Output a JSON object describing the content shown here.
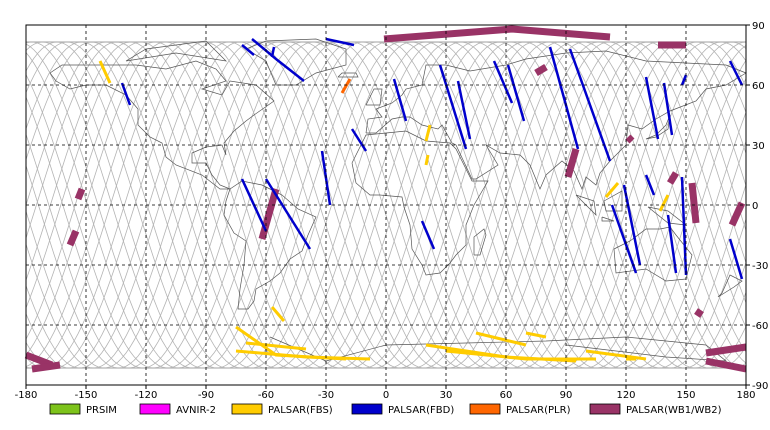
{
  "chart_data": {
    "type": "map",
    "projection": "equirectangular",
    "xlim": [
      -180,
      180
    ],
    "ylim": [
      -90,
      90
    ],
    "grid": "dashed, every 30 degrees",
    "x_ticks": [
      -180,
      -150,
      -120,
      -90,
      -60,
      -30,
      0,
      30,
      60,
      90,
      120,
      150,
      180
    ],
    "y_ticks": [
      -90,
      -60,
      -30,
      0,
      30,
      60,
      90
    ],
    "orbit_track_color": "#b4b4b4",
    "coast_color": "#555555",
    "legend": [
      {
        "label": "PRSIM",
        "color": "#7dc31b"
      },
      {
        "label": "AVNIR-2",
        "color": "#ff00ff"
      },
      {
        "label": "PALSAR(FBS)",
        "color": "#ffcc00"
      },
      {
        "label": "PALSAR(FBD)",
        "color": "#0000cc"
      },
      {
        "label": "PALSAR(PLR)",
        "color": "#ff6600"
      },
      {
        "label": "PALSAR(WB1/WB2)",
        "color": "#993366"
      }
    ],
    "series": [
      {
        "sensor": "PALSAR(WB1/WB2)",
        "lines": [
          [
            [
              -180,
              -75
            ],
            [
              -167,
              -80
            ]
          ],
          [
            [
              -177,
              -82
            ],
            [
              -163,
              -80
            ]
          ],
          [
            [
              -158,
              -20
            ],
            [
              -155,
              -13
            ]
          ],
          [
            [
              -154,
              3
            ],
            [
              -152,
              8
            ]
          ],
          [
            [
              -62,
              -17
            ],
            [
              -55,
              8
            ]
          ],
          [
            [
              -1,
              83
            ],
            [
              63,
              88
            ],
            [
              112,
              84
            ]
          ],
          [
            [
              75,
              66
            ],
            [
              80,
              69
            ]
          ],
          [
            [
              91,
              14
            ],
            [
              95,
              28
            ]
          ],
          [
            [
              121,
              34
            ],
            [
              123,
              32
            ]
          ],
          [
            [
              142,
              11
            ],
            [
              145,
              16
            ]
          ],
          [
            [
              153,
              11
            ],
            [
              155,
              -9
            ]
          ],
          [
            [
              173,
              -10
            ],
            [
              178,
              1
            ]
          ],
          [
            [
              136,
              80
            ],
            [
              150,
              80
            ]
          ],
          [
            [
              155,
              -53
            ],
            [
              158,
              -55
            ]
          ],
          [
            [
              160,
              -74
            ],
            [
              180,
              -71
            ]
          ],
          [
            [
              160,
              -78
            ],
            [
              180,
              -82
            ]
          ]
        ]
      },
      {
        "sensor": "PALSAR(FBD)",
        "lines": [
          [
            [
              -67,
              83
            ],
            [
              -55,
              73
            ],
            [
              -41,
              62
            ]
          ],
          [
            [
              -30,
              83
            ],
            [
              -16,
              80
            ]
          ],
          [
            [
              -72,
              80
            ],
            [
              -66,
              75
            ]
          ],
          [
            [
              -132,
              61
            ],
            [
              -128,
              50
            ]
          ],
          [
            [
              -56,
              79
            ],
            [
              -57,
              74
            ]
          ],
          [
            [
              -72,
              13
            ],
            [
              -60,
              -13
            ]
          ],
          [
            [
              -60,
              13
            ],
            [
              -38,
              -22
            ]
          ],
          [
            [
              -32,
              27
            ],
            [
              -28,
              0
            ]
          ],
          [
            [
              -17,
              38
            ],
            [
              -10,
              27
            ]
          ],
          [
            [
              4,
              63
            ],
            [
              10,
              42
            ]
          ],
          [
            [
              18,
              -8
            ],
            [
              24,
              -22
            ]
          ],
          [
            [
              27,
              70
            ],
            [
              40,
              28
            ]
          ],
          [
            [
              36,
              62
            ],
            [
              42,
              33
            ]
          ],
          [
            [
              54,
              72
            ],
            [
              63,
              51
            ]
          ],
          [
            [
              61,
              70
            ],
            [
              69,
              42
            ]
          ],
          [
            [
              92,
              78
            ],
            [
              112,
              22
            ]
          ],
          [
            [
              82,
              79
            ],
            [
              96,
              28
            ]
          ],
          [
            [
              119,
              10
            ],
            [
              127,
              -30
            ]
          ],
          [
            [
              113,
              0
            ],
            [
              125,
              -34
            ]
          ],
          [
            [
              130,
              64
            ],
            [
              136,
              33
            ]
          ],
          [
            [
              139,
              61
            ],
            [
              143,
              35
            ]
          ],
          [
            [
              148,
              14
            ],
            [
              150,
              -35
            ]
          ],
          [
            [
              172,
              72
            ],
            [
              178,
              60
            ]
          ],
          [
            [
              172,
              -17
            ],
            [
              178,
              -37
            ]
          ],
          [
            [
              141,
              -5
            ],
            [
              145,
              -34
            ]
          ],
          [
            [
              130,
              15
            ],
            [
              134,
              5
            ]
          ],
          [
            [
              148,
              60
            ],
            [
              150,
              65
            ]
          ]
        ]
      },
      {
        "sensor": "PALSAR(FBS)",
        "lines": [
          [
            [
              -143,
              72
            ],
            [
              -138,
              61
            ]
          ],
          [
            [
              -57,
              -51
            ],
            [
              -51,
              -58
            ]
          ],
          [
            [
              -75,
              -61
            ],
            [
              -55,
              -75
            ],
            [
              -20,
              -77
            ]
          ],
          [
            [
              -75,
              -73
            ],
            [
              -40,
              -76
            ],
            [
              -8,
              -77
            ]
          ],
          [
            [
              -70,
              -69
            ],
            [
              -40,
              -72
            ]
          ],
          [
            [
              20,
              -70
            ],
            [
              60,
              -76
            ],
            [
              95,
              -78
            ]
          ],
          [
            [
              30,
              -73
            ],
            [
              70,
              -77
            ],
            [
              105,
              -77
            ]
          ],
          [
            [
              45,
              -64
            ],
            [
              70,
              -70
            ]
          ],
          [
            [
              70,
              -64
            ],
            [
              80,
              -66
            ]
          ],
          [
            [
              100,
              -73
            ],
            [
              130,
              -77
            ]
          ],
          [
            [
              110,
              4
            ],
            [
              116,
              11
            ]
          ],
          [
            [
              120,
              -77
            ],
            [
              125,
              -77
            ]
          ],
          [
            [
              137,
              -3
            ],
            [
              141,
              5
            ]
          ],
          [
            [
              20,
              20
            ],
            [
              21,
              25
            ]
          ],
          [
            [
              20,
              32
            ],
            [
              22,
              40
            ]
          ]
        ]
      },
      {
        "sensor": "PALSAR(PLR)",
        "lines": [
          [
            [
              -22,
              56
            ],
            [
              -18,
              63
            ]
          ]
        ]
      }
    ]
  }
}
